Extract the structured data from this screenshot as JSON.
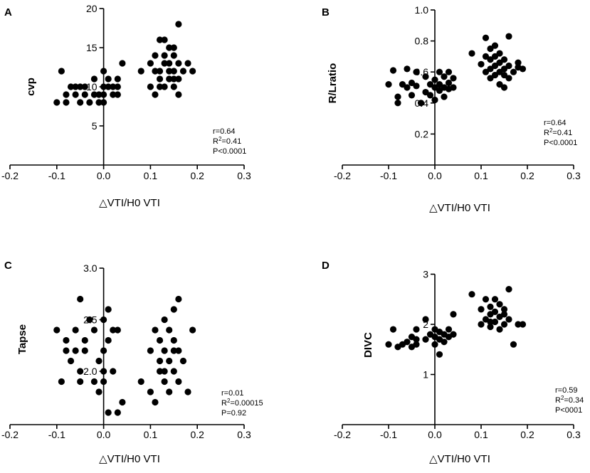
{
  "chart_data": [
    {
      "type": "scatter",
      "panel": "A",
      "ylabel": "cvp",
      "xlabel": "△VTI/H0 VTI",
      "xlim": [
        -0.2,
        0.3
      ],
      "xticks": [
        "-0.2",
        "-0.1",
        "0.0",
        "0.1",
        "0.2",
        "0.3"
      ],
      "ylim": [
        0,
        20
      ],
      "yticks": [
        "5",
        "10",
        "15",
        "20"
      ],
      "stats": [
        "r=0.64",
        "R²=0.41",
        "P<0.0001"
      ],
      "points": [
        [
          -0.1,
          8
        ],
        [
          -0.09,
          12
        ],
        [
          -0.08,
          8
        ],
        [
          -0.08,
          9
        ],
        [
          -0.07,
          10
        ],
        [
          -0.06,
          10
        ],
        [
          -0.06,
          9
        ],
        [
          -0.05,
          10
        ],
        [
          -0.05,
          8
        ],
        [
          -0.04,
          10
        ],
        [
          -0.04,
          9
        ],
        [
          -0.03,
          8
        ],
        [
          -0.02,
          9
        ],
        [
          -0.02,
          11
        ],
        [
          -0.01,
          9
        ],
        [
          0.0,
          10
        ],
        [
          0.0,
          12
        ],
        [
          0.0,
          9
        ],
        [
          -0.01,
          8
        ],
        [
          0.0,
          8
        ],
        [
          0.01,
          10
        ],
        [
          0.01,
          11
        ],
        [
          0.02,
          9
        ],
        [
          0.02,
          10
        ],
        [
          0.03,
          9
        ],
        [
          0.03,
          10
        ],
        [
          0.04,
          13
        ],
        [
          0.03,
          11
        ],
        [
          0.08,
          12
        ],
        [
          0.1,
          10
        ],
        [
          0.1,
          13
        ],
        [
          0.11,
          12
        ],
        [
          0.11,
          14
        ],
        [
          0.11,
          9
        ],
        [
          0.12,
          16
        ],
        [
          0.12,
          12
        ],
        [
          0.12,
          11
        ],
        [
          0.13,
          13
        ],
        [
          0.13,
          16
        ],
        [
          0.13,
          14
        ],
        [
          0.13,
          10
        ],
        [
          0.14,
          15
        ],
        [
          0.14,
          13
        ],
        [
          0.14,
          12
        ],
        [
          0.14,
          11
        ],
        [
          0.15,
          15
        ],
        [
          0.15,
          14
        ],
        [
          0.15,
          12
        ],
        [
          0.15,
          10
        ],
        [
          0.16,
          13
        ],
        [
          0.16,
          11
        ],
        [
          0.16,
          18
        ],
        [
          0.16,
          9
        ],
        [
          0.17,
          12
        ],
        [
          0.18,
          13
        ],
        [
          0.19,
          12
        ],
        [
          0.12,
          10
        ],
        [
          0.15,
          11
        ]
      ]
    },
    {
      "type": "scatter",
      "panel": "B",
      "ylabel": "R/Lratio",
      "xlabel": "△VTI/H0 VTI",
      "xlim": [
        -0.2,
        0.3
      ],
      "xticks": [
        "-0.2",
        "-0.1",
        "0.0",
        "0.1",
        "0.2",
        "0.3"
      ],
      "ylim": [
        0,
        1.0
      ],
      "yticks": [
        "0.2",
        "0.4",
        "0.6",
        "0.8",
        "1.0"
      ],
      "stats": [
        "r=0.64",
        "R²=0.41",
        "P<0.0001"
      ],
      "points": [
        [
          -0.1,
          0.52
        ],
        [
          -0.09,
          0.61
        ],
        [
          -0.08,
          0.44
        ],
        [
          -0.08,
          0.4
        ],
        [
          -0.07,
          0.52
        ],
        [
          -0.06,
          0.62
        ],
        [
          -0.06,
          0.5
        ],
        [
          -0.05,
          0.53
        ],
        [
          -0.05,
          0.45
        ],
        [
          -0.04,
          0.6
        ],
        [
          -0.04,
          0.51
        ],
        [
          -0.03,
          0.4
        ],
        [
          -0.02,
          0.57
        ],
        [
          -0.02,
          0.47
        ],
        [
          -0.01,
          0.52
        ],
        [
          -0.01,
          0.45
        ],
        [
          0.0,
          0.5
        ],
        [
          0.0,
          0.55
        ],
        [
          0.0,
          0.42
        ],
        [
          0.01,
          0.48
        ],
        [
          0.01,
          0.6
        ],
        [
          0.01,
          0.52
        ],
        [
          0.02,
          0.5
        ],
        [
          0.02,
          0.44
        ],
        [
          0.02,
          0.57
        ],
        [
          0.03,
          0.53
        ],
        [
          0.03,
          0.49
        ],
        [
          0.04,
          0.5
        ],
        [
          0.04,
          0.56
        ],
        [
          0.03,
          0.6
        ],
        [
          0.08,
          0.72
        ],
        [
          0.1,
          0.65
        ],
        [
          0.11,
          0.82
        ],
        [
          0.11,
          0.7
        ],
        [
          0.11,
          0.6
        ],
        [
          0.12,
          0.75
        ],
        [
          0.12,
          0.68
        ],
        [
          0.12,
          0.56
        ],
        [
          0.13,
          0.77
        ],
        [
          0.13,
          0.7
        ],
        [
          0.13,
          0.64
        ],
        [
          0.13,
          0.58
        ],
        [
          0.14,
          0.72
        ],
        [
          0.14,
          0.66
        ],
        [
          0.14,
          0.6
        ],
        [
          0.14,
          0.52
        ],
        [
          0.15,
          0.68
        ],
        [
          0.15,
          0.62
        ],
        [
          0.15,
          0.5
        ],
        [
          0.16,
          0.83
        ],
        [
          0.16,
          0.64
        ],
        [
          0.16,
          0.56
        ],
        [
          0.17,
          0.6
        ],
        [
          0.18,
          0.66
        ],
        [
          0.18,
          0.63
        ],
        [
          0.19,
          0.62
        ],
        [
          0.12,
          0.62
        ],
        [
          0.15,
          0.58
        ]
      ]
    },
    {
      "type": "scatter",
      "panel": "C",
      "ylabel": "Tapse",
      "xlabel": "△VTI/H0 VTI",
      "xlim": [
        -0.2,
        0.3
      ],
      "xticks": [
        "-0.2",
        "-0.1",
        "0.0",
        "0.1",
        "0.2",
        "0.3"
      ],
      "ylim": [
        1.5,
        3.0
      ],
      "yticks": [
        "2.0",
        "2.5",
        "3.0"
      ],
      "stats": [
        "r=0.01",
        "R²=0.00015",
        "P=0.92"
      ],
      "points": [
        [
          -0.1,
          2.4
        ],
        [
          -0.09,
          1.9
        ],
        [
          -0.08,
          2.2
        ],
        [
          -0.08,
          2.3
        ],
        [
          -0.07,
          2.1
        ],
        [
          -0.06,
          2.2
        ],
        [
          -0.06,
          2.4
        ],
        [
          -0.05,
          2.7
        ],
        [
          -0.05,
          2.0
        ],
        [
          -0.05,
          1.9
        ],
        [
          -0.04,
          2.3
        ],
        [
          -0.04,
          2.2
        ],
        [
          -0.03,
          2.5
        ],
        [
          -0.02,
          1.9
        ],
        [
          -0.02,
          2.4
        ],
        [
          -0.01,
          2.1
        ],
        [
          -0.01,
          1.8
        ],
        [
          0.0,
          2.5
        ],
        [
          0.0,
          2.2
        ],
        [
          0.0,
          2.0
        ],
        [
          0.0,
          1.9
        ],
        [
          0.01,
          1.6
        ],
        [
          0.01,
          2.6
        ],
        [
          0.01,
          2.3
        ],
        [
          0.02,
          2.4
        ],
        [
          0.02,
          2.0
        ],
        [
          0.03,
          2.4
        ],
        [
          0.03,
          1.6
        ],
        [
          0.04,
          1.7
        ],
        [
          0.08,
          1.9
        ],
        [
          0.1,
          2.2
        ],
        [
          0.1,
          1.8
        ],
        [
          0.11,
          2.4
        ],
        [
          0.11,
          1.7
        ],
        [
          0.12,
          2.1
        ],
        [
          0.12,
          2.0
        ],
        [
          0.12,
          2.3
        ],
        [
          0.13,
          2.5
        ],
        [
          0.13,
          2.2
        ],
        [
          0.13,
          1.9
        ],
        [
          0.14,
          2.4
        ],
        [
          0.14,
          2.1
        ],
        [
          0.14,
          1.8
        ],
        [
          0.15,
          2.6
        ],
        [
          0.15,
          2.3
        ],
        [
          0.15,
          2.0
        ],
        [
          0.16,
          2.7
        ],
        [
          0.16,
          2.2
        ],
        [
          0.16,
          1.9
        ],
        [
          0.17,
          2.1
        ],
        [
          0.18,
          1.8
        ],
        [
          0.19,
          2.4
        ],
        [
          0.13,
          2.0
        ],
        [
          0.15,
          2.2
        ]
      ]
    },
    {
      "type": "scatter",
      "panel": "D",
      "ylabel": "DIVC",
      "xlabel": "△VTI/H0 VTI",
      "xlim": [
        -0.2,
        0.3
      ],
      "xticks": [
        "-0.2",
        "-0.1",
        "0.0",
        "0.1",
        "0.2",
        "0.3"
      ],
      "ylim": [
        0,
        3
      ],
      "yticks": [
        "1",
        "2",
        "3"
      ],
      "stats": [
        "r=0.59",
        "R²=0.34",
        "P<0001"
      ],
      "points": [
        [
          -0.1,
          1.6
        ],
        [
          -0.09,
          1.9
        ],
        [
          -0.08,
          1.55
        ],
        [
          -0.07,
          1.6
        ],
        [
          -0.06,
          1.65
        ],
        [
          -0.05,
          1.75
        ],
        [
          -0.05,
          1.55
        ],
        [
          -0.04,
          1.6
        ],
        [
          -0.04,
          1.7
        ],
        [
          -0.04,
          1.9
        ],
        [
          -0.02,
          2.1
        ],
        [
          -0.02,
          1.7
        ],
        [
          -0.01,
          1.8
        ],
        [
          0.0,
          1.6
        ],
        [
          0.0,
          1.9
        ],
        [
          0.0,
          1.75
        ],
        [
          0.01,
          1.7
        ],
        [
          0.01,
          1.85
        ],
        [
          0.01,
          1.4
        ],
        [
          0.02,
          1.8
        ],
        [
          0.02,
          1.65
        ],
        [
          0.03,
          1.75
        ],
        [
          0.03,
          1.9
        ],
        [
          0.04,
          1.8
        ],
        [
          0.04,
          2.2
        ],
        [
          0.08,
          2.6
        ],
        [
          0.1,
          2.0
        ],
        [
          0.1,
          2.3
        ],
        [
          0.11,
          2.5
        ],
        [
          0.11,
          2.1
        ],
        [
          0.12,
          2.2
        ],
        [
          0.12,
          1.95
        ],
        [
          0.12,
          2.35
        ],
        [
          0.13,
          2.5
        ],
        [
          0.13,
          2.05
        ],
        [
          0.13,
          2.25
        ],
        [
          0.14,
          2.15
        ],
        [
          0.14,
          1.9
        ],
        [
          0.14,
          2.4
        ],
        [
          0.15,
          2.0
        ],
        [
          0.15,
          2.3
        ],
        [
          0.16,
          2.7
        ],
        [
          0.16,
          2.1
        ],
        [
          0.17,
          1.6
        ],
        [
          0.18,
          2.0
        ],
        [
          0.19,
          2.0
        ],
        [
          0.12,
          2.05
        ],
        [
          0.15,
          2.2
        ]
      ]
    }
  ]
}
